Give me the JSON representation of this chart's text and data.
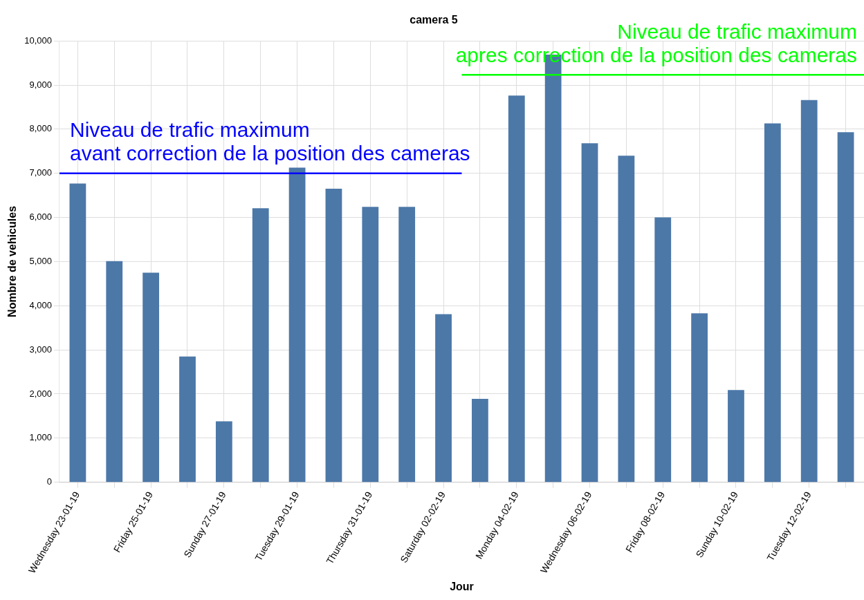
{
  "chart_data": {
    "type": "bar",
    "title": "camera 5",
    "xlabel": "Jour",
    "ylabel": "Nombre de vehicules",
    "categories": [
      "Wednesday 23-01-19",
      null,
      "Friday 25-01-19",
      null,
      "Sunday 27-01-19",
      null,
      "Tuesday 29-01-19",
      null,
      "Thursday 31-01-19",
      null,
      "Saturday 02-02-19",
      null,
      "Monday 04-02-19",
      null,
      "Wednesday 06-02-19",
      null,
      "Friday 08-02-19",
      null,
      "Sunday 10-02-19",
      null,
      "Tuesday 12-02-19",
      null
    ],
    "values": [
      6770,
      5010,
      4750,
      2850,
      1380,
      6210,
      7130,
      6650,
      6240,
      6240,
      3810,
      1890,
      8760,
      9690,
      7680,
      7400,
      6000,
      3830,
      2090,
      8130,
      8660,
      7930
    ],
    "color": "#4c78a8",
    "ylim": [
      0,
      10000
    ],
    "yticks": [
      0,
      {
        "value": 1000,
        "label": "1,000"
      },
      {
        "value": 2000,
        "label": "2,000"
      },
      {
        "value": 3000,
        "label": "3,000"
      },
      {
        "value": 4000,
        "label": "4,000"
      },
      {
        "value": 5000,
        "label": "5,000"
      },
      {
        "value": 6000,
        "label": "6,000"
      },
      {
        "value": 7000,
        "label": "7,000"
      },
      {
        "value": 8000,
        "label": "8,000"
      },
      {
        "value": 9000,
        "label": "9,000"
      },
      {
        "value": 10000,
        "label": "10,000"
      }
    ],
    "grid": true,
    "ref_lines": [
      {
        "axis": "y",
        "value": 7000,
        "label": "Niveau de trafic maximum\navant correction de la position des cameras",
        "color": "#0000ff"
      },
      {
        "axis": "y",
        "value": 9230,
        "label": "Niveau de trafic maximum\napres correction de la position des cameras",
        "color": "#00ff00"
      }
    ]
  }
}
